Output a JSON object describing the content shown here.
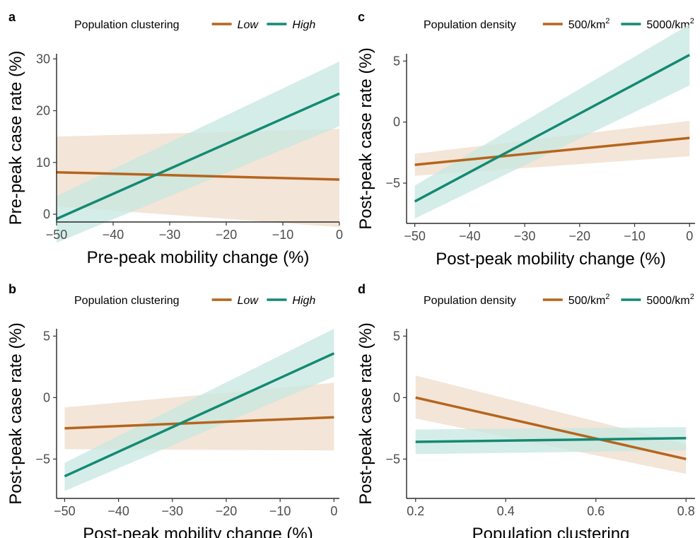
{
  "colors": {
    "low": "#b5651d",
    "high": "#138a72",
    "ribbon_low": "#efdccb",
    "ribbon_high": "#c7e7e0"
  },
  "chart_data": [
    {
      "panel": "a",
      "type": "line",
      "legend": {
        "title": "Population clustering",
        "italic": true,
        "position": "top",
        "items": [
          {
            "label": "Low",
            "sup": ""
          },
          {
            "label": "High",
            "sup": ""
          }
        ]
      },
      "xlabel": "Pre-peak mobility change (%)",
      "ylabel": "Pre-peak case rate (%)",
      "xlim": [
        -50,
        0
      ],
      "ylim": [
        -1.5,
        31
      ],
      "xticks": [
        -50,
        -40,
        -30,
        -20,
        -10,
        0
      ],
      "yticks": [
        0,
        10,
        20,
        30
      ],
      "grid": false,
      "series": [
        {
          "name": "Low",
          "x": [
            -50,
            0
          ],
          "y": [
            8.1,
            6.7
          ],
          "lower": [
            1.5,
            -2.5
          ],
          "upper": [
            15.0,
            16.5
          ]
        },
        {
          "name": "High",
          "x": [
            -50,
            0
          ],
          "y": [
            -0.9,
            23.3
          ],
          "lower": [
            -5.5,
            17.0
          ],
          "upper": [
            3.5,
            29.5
          ]
        }
      ]
    },
    {
      "panel": "b",
      "type": "line",
      "legend": {
        "title": "Population clustering",
        "italic": true,
        "position": "top",
        "items": [
          {
            "label": "Low",
            "sup": ""
          },
          {
            "label": "High",
            "sup": ""
          }
        ]
      },
      "xlabel": "Post-peak mobility change (%)",
      "ylabel": "Post-peak case rate (%)",
      "xlim": [
        -51.5,
        1
      ],
      "ylim": [
        -8.2,
        5.6
      ],
      "xticks": [
        -50,
        -40,
        -30,
        -20,
        -10,
        0
      ],
      "yticks": [
        -5,
        0,
        5
      ],
      "grid": false,
      "series": [
        {
          "name": "Low",
          "x": [
            -50,
            0
          ],
          "y": [
            -2.5,
            -1.6
          ],
          "lower": [
            -4.2,
            -4.3
          ],
          "upper": [
            -0.8,
            1.2
          ]
        },
        {
          "name": "High",
          "x": [
            -50,
            0
          ],
          "y": [
            -6.4,
            3.6
          ],
          "lower": [
            -7.6,
            1.7
          ],
          "upper": [
            -5.3,
            5.6
          ]
        }
      ]
    },
    {
      "panel": "c",
      "type": "line",
      "legend": {
        "title": "Population density",
        "italic": false,
        "position": "top",
        "items": [
          {
            "label": "500/km",
            "sup": "2"
          },
          {
            "label": "5000/km",
            "sup": "2"
          }
        ]
      },
      "xlabel": "Post-peak mobility change (%)",
      "ylabel": "Post-peak case rate (%)",
      "xlim": [
        -51.5,
        1
      ],
      "ylim": [
        -8.3,
        5.6
      ],
      "xticks": [
        -50,
        -40,
        -30,
        -20,
        -10,
        0
      ],
      "yticks": [
        -5,
        0,
        5
      ],
      "grid": false,
      "series": [
        {
          "name": "500/km2",
          "x": [
            -50,
            0
          ],
          "y": [
            -3.5,
            -1.3
          ],
          "lower": [
            -4.4,
            -2.8
          ],
          "upper": [
            -2.6,
            0.1
          ]
        },
        {
          "name": "5000/km2",
          "x": [
            -50,
            0
          ],
          "y": [
            -6.5,
            5.5
          ],
          "lower": [
            -7.9,
            3.0
          ],
          "upper": [
            -5.2,
            8.0
          ]
        }
      ]
    },
    {
      "panel": "d",
      "type": "line",
      "legend": {
        "title": "Population density",
        "italic": false,
        "position": "top",
        "items": [
          {
            "label": "500/km",
            "sup": "2"
          },
          {
            "label": "5000/km",
            "sup": "2"
          }
        ]
      },
      "xlabel": "Population clustering",
      "ylabel": "Post-peak case rate (%)",
      "xlim": [
        0.18,
        0.82
      ],
      "ylim": [
        -8.2,
        5.6
      ],
      "xticks": [
        0.2,
        0.4,
        0.6,
        0.8
      ],
      "yticks": [
        -5,
        0,
        5
      ],
      "grid": false,
      "series": [
        {
          "name": "500/km2",
          "x": [
            0.2,
            0.8
          ],
          "y": [
            0.0,
            -5.0
          ],
          "lower": [
            -1.7,
            -6.2
          ],
          "upper": [
            1.8,
            -3.8
          ]
        },
        {
          "name": "5000/km2",
          "x": [
            0.2,
            0.8
          ],
          "y": [
            -3.6,
            -3.3
          ],
          "lower": [
            -4.6,
            -4.3
          ],
          "upper": [
            -2.6,
            -2.4
          ]
        }
      ]
    }
  ]
}
